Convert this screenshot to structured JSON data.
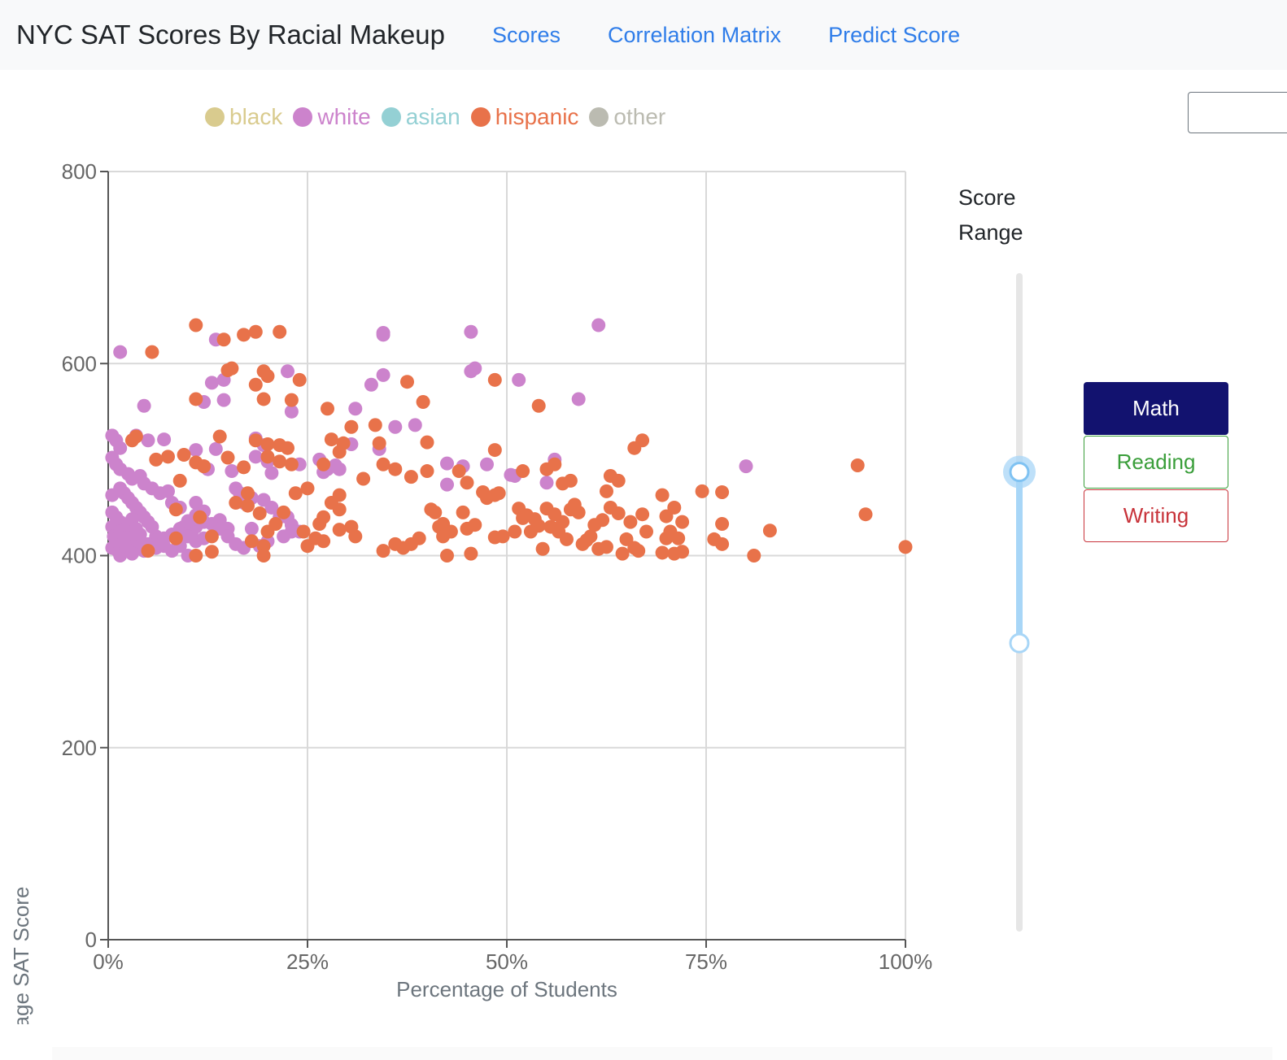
{
  "navbar": {
    "brand": "NYC SAT Scores By Racial Makeup",
    "links": [
      "Scores",
      "Correlation Matrix",
      "Predict Score"
    ]
  },
  "legend": [
    {
      "label": "black",
      "color": "#d9cb8e"
    },
    {
      "label": "white",
      "color": "#cc83cc"
    },
    {
      "label": "asian",
      "color": "#94d0d4"
    },
    {
      "label": "hispanic",
      "color": "#e8724a"
    },
    {
      "label": "other",
      "color": "#bbbbb1"
    }
  ],
  "controls": {
    "range_label": "Score Range",
    "slider_values": [
      560,
      350
    ],
    "slider_min": 0,
    "slider_max": 800,
    "buttons": [
      "Math",
      "Reading",
      "Writing"
    ],
    "active_button": "Math"
  },
  "chart_data": {
    "type": "scatter",
    "xlabel": "Percentage of Students",
    "ylabel": "Average SAT Score",
    "xlim": [
      0,
      100
    ],
    "ylim": [
      0,
      800
    ],
    "x_ticks": [
      "0%",
      "25%",
      "50%",
      "75%",
      "100%"
    ],
    "y_ticks": [
      "0",
      "200",
      "400",
      "600",
      "800"
    ],
    "grid": true,
    "series": [
      {
        "name": "white",
        "color": "#cc83cc",
        "points": [
          [
            1.5,
            612
          ],
          [
            13.5,
            625
          ],
          [
            34.5,
            632
          ],
          [
            34.5,
            630
          ],
          [
            45.5,
            633
          ],
          [
            61.5,
            640
          ],
          [
            46,
            595
          ],
          [
            45.5,
            592
          ],
          [
            51.5,
            583
          ],
          [
            34.5,
            588
          ],
          [
            33,
            578
          ],
          [
            22.5,
            592
          ],
          [
            14.5,
            583
          ],
          [
            13,
            580
          ],
          [
            12,
            560
          ],
          [
            14.5,
            562
          ],
          [
            4.5,
            556
          ],
          [
            23,
            550
          ],
          [
            31,
            553
          ],
          [
            59,
            563
          ],
          [
            0.5,
            525
          ],
          [
            1,
            520
          ],
          [
            1.5,
            512
          ],
          [
            3.5,
            525
          ],
          [
            5,
            520
          ],
          [
            7,
            521
          ],
          [
            13.5,
            511
          ],
          [
            11,
            510
          ],
          [
            18.5,
            522
          ],
          [
            19.5,
            515
          ],
          [
            20,
            498
          ],
          [
            18.5,
            503
          ],
          [
            24,
            495
          ],
          [
            26.5,
            500
          ],
          [
            27.5,
            490
          ],
          [
            29,
            490
          ],
          [
            30.5,
            516
          ],
          [
            34,
            511
          ],
          [
            36,
            534
          ],
          [
            38.5,
            536
          ],
          [
            42.5,
            496
          ],
          [
            44.5,
            493
          ],
          [
            47.5,
            495
          ],
          [
            50.5,
            484
          ],
          [
            51,
            483
          ],
          [
            56,
            500
          ],
          [
            80,
            493
          ],
          [
            42.5,
            474
          ],
          [
            55,
            476
          ],
          [
            0.5,
            502
          ],
          [
            1,
            495
          ],
          [
            1.5,
            490
          ],
          [
            2.5,
            485
          ],
          [
            3,
            480
          ],
          [
            4,
            483
          ],
          [
            4.5,
            475
          ],
          [
            5.5,
            470
          ],
          [
            6.5,
            465
          ],
          [
            7.5,
            467
          ],
          [
            8,
            455
          ],
          [
            9,
            450
          ],
          [
            11,
            455
          ],
          [
            12.5,
            490
          ],
          [
            15.5,
            488
          ],
          [
            16,
            470
          ],
          [
            16.5,
            465
          ],
          [
            18,
            460
          ],
          [
            19.5,
            458
          ],
          [
            20.5,
            450
          ],
          [
            21.5,
            440
          ],
          [
            22.5,
            440
          ],
          [
            23,
            432
          ],
          [
            24,
            425
          ],
          [
            18,
            428
          ],
          [
            17,
            455
          ],
          [
            15,
            428
          ],
          [
            13.5,
            432
          ],
          [
            14,
            437
          ],
          [
            12,
            435
          ],
          [
            11,
            430
          ],
          [
            10.5,
            425
          ],
          [
            9.5,
            430
          ],
          [
            10,
            420
          ],
          [
            11,
            415
          ],
          [
            12,
            418
          ],
          [
            9,
            410
          ],
          [
            8,
            405
          ],
          [
            10,
            400
          ],
          [
            7,
            410
          ],
          [
            6,
            420
          ],
          [
            5.5,
            430
          ],
          [
            5,
            435
          ],
          [
            4.5,
            440
          ],
          [
            4,
            445
          ],
          [
            3.5,
            450
          ],
          [
            3,
            455
          ],
          [
            2.5,
            460
          ],
          [
            2,
            465
          ],
          [
            1.5,
            470
          ],
          [
            0.5,
            463
          ],
          [
            0.5,
            445
          ],
          [
            1,
            440
          ],
          [
            1.5,
            435
          ],
          [
            2,
            430
          ],
          [
            2.5,
            425
          ],
          [
            3,
            420
          ],
          [
            3.5,
            415
          ],
          [
            4,
            410
          ],
          [
            4.5,
            405
          ],
          [
            0.5,
            430
          ],
          [
            0.7,
            420
          ],
          [
            1,
            410
          ],
          [
            1.2,
            405
          ],
          [
            1.5,
            400
          ],
          [
            2,
            412
          ],
          [
            2.5,
            405
          ],
          [
            3,
            402
          ],
          [
            0.5,
            408
          ],
          [
            1,
            415
          ],
          [
            1.5,
            425
          ],
          [
            2,
            418
          ],
          [
            2.5,
            432
          ],
          [
            3,
            438
          ],
          [
            3.5,
            428
          ],
          [
            4,
            422
          ],
          [
            5,
            412
          ],
          [
            6,
            408
          ],
          [
            7,
            418
          ],
          [
            8,
            422
          ],
          [
            9,
            428
          ],
          [
            10,
            436
          ],
          [
            11,
            442
          ],
          [
            12,
            446
          ],
          [
            13,
            433
          ],
          [
            14,
            428
          ],
          [
            15,
            420
          ],
          [
            16,
            412
          ],
          [
            17,
            408
          ],
          [
            19,
            410
          ],
          [
            20,
            415
          ],
          [
            22,
            420
          ],
          [
            23,
            425
          ],
          [
            20.5,
            486
          ],
          [
            27,
            487
          ],
          [
            28.5,
            494
          ]
        ]
      },
      {
        "name": "hispanic",
        "color": "#e8724a",
        "points": [
          [
            11,
            640
          ],
          [
            14.5,
            625
          ],
          [
            17,
            630
          ],
          [
            18.5,
            633
          ],
          [
            21.5,
            633
          ],
          [
            5.5,
            612
          ],
          [
            15.5,
            595
          ],
          [
            15,
            593
          ],
          [
            19.5,
            592
          ],
          [
            20,
            587
          ],
          [
            24,
            583
          ],
          [
            18.5,
            578
          ],
          [
            37.5,
            581
          ],
          [
            48.5,
            583
          ],
          [
            11,
            563
          ],
          [
            19.5,
            563
          ],
          [
            23,
            562
          ],
          [
            39.5,
            560
          ],
          [
            54,
            556
          ],
          [
            27.5,
            553
          ],
          [
            3.5,
            524
          ],
          [
            14,
            524
          ],
          [
            18.5,
            520
          ],
          [
            20,
            516
          ],
          [
            21.5,
            515
          ],
          [
            22.5,
            512
          ],
          [
            28,
            521
          ],
          [
            29.5,
            517
          ],
          [
            30.5,
            534
          ],
          [
            33.5,
            536
          ],
          [
            34,
            517
          ],
          [
            40,
            518
          ],
          [
            48.5,
            510
          ],
          [
            66,
            512
          ],
          [
            67,
            520
          ],
          [
            7.5,
            503
          ],
          [
            9.5,
            505
          ],
          [
            11,
            497
          ],
          [
            12,
            493
          ],
          [
            15,
            502
          ],
          [
            17,
            492
          ],
          [
            20,
            503
          ],
          [
            21.5,
            498
          ],
          [
            23,
            495
          ],
          [
            27,
            495
          ],
          [
            29,
            508
          ],
          [
            34.5,
            495
          ],
          [
            36,
            490
          ],
          [
            38,
            482
          ],
          [
            40,
            488
          ],
          [
            45,
            476
          ],
          [
            47,
            466
          ],
          [
            48.5,
            463
          ],
          [
            52,
            488
          ],
          [
            55,
            490
          ],
          [
            56,
            495
          ],
          [
            57,
            475
          ],
          [
            58,
            478
          ],
          [
            63,
            483
          ],
          [
            64,
            478
          ],
          [
            62.5,
            467
          ],
          [
            74.5,
            467
          ],
          [
            77,
            466
          ],
          [
            94,
            494
          ],
          [
            95,
            443
          ],
          [
            100,
            409
          ],
          [
            5,
            405
          ],
          [
            8.5,
            418
          ],
          [
            8.5,
            448
          ],
          [
            9,
            478
          ],
          [
            12,
            493
          ],
          [
            11.5,
            440
          ],
          [
            13,
            420
          ],
          [
            13,
            404
          ],
          [
            11,
            400
          ],
          [
            16,
            455
          ],
          [
            17.5,
            465
          ],
          [
            17.5,
            452
          ],
          [
            19,
            444
          ],
          [
            20,
            425
          ],
          [
            18,
            415
          ],
          [
            19.5,
            410
          ],
          [
            19.5,
            400
          ],
          [
            21,
            433
          ],
          [
            22,
            445
          ],
          [
            23.5,
            465
          ],
          [
            24.5,
            425
          ],
          [
            25,
            410
          ],
          [
            26,
            418
          ],
          [
            27,
            415
          ],
          [
            28,
            455
          ],
          [
            29,
            448
          ],
          [
            29,
            463
          ],
          [
            26.5,
            433
          ],
          [
            29,
            427
          ],
          [
            34.5,
            405
          ],
          [
            36,
            412
          ],
          [
            37,
            408
          ],
          [
            38,
            412
          ],
          [
            39,
            418
          ],
          [
            40.5,
            448
          ],
          [
            41,
            445
          ],
          [
            41.5,
            430
          ],
          [
            42,
            420
          ],
          [
            42,
            433
          ],
          [
            42.5,
            400
          ],
          [
            43,
            425
          ],
          [
            44,
            488
          ],
          [
            44.5,
            445
          ],
          [
            45,
            428
          ],
          [
            45.5,
            402
          ],
          [
            46,
            432
          ],
          [
            47.5,
            460
          ],
          [
            48.5,
            419
          ],
          [
            49,
            465
          ],
          [
            49.5,
            420
          ],
          [
            51,
            425
          ],
          [
            51.5,
            449
          ],
          [
            52,
            439
          ],
          [
            52.5,
            442
          ],
          [
            53,
            425
          ],
          [
            53.5,
            438
          ],
          [
            54,
            431
          ],
          [
            54.5,
            407
          ],
          [
            55,
            449
          ],
          [
            55.5,
            430
          ],
          [
            56,
            443
          ],
          [
            56.5,
            425
          ],
          [
            57,
            435
          ],
          [
            57.5,
            417
          ],
          [
            58,
            448
          ],
          [
            58.5,
            453
          ],
          [
            59,
            445
          ],
          [
            59.5,
            412
          ],
          [
            60,
            416
          ],
          [
            60.5,
            420
          ],
          [
            61,
            432
          ],
          [
            61.5,
            407
          ],
          [
            62,
            437
          ],
          [
            62.5,
            409
          ],
          [
            63,
            450
          ],
          [
            64,
            444
          ],
          [
            64.5,
            402
          ],
          [
            65,
            417
          ],
          [
            65.5,
            435
          ],
          [
            66,
            408
          ],
          [
            66.5,
            405
          ],
          [
            67,
            443
          ],
          [
            67.5,
            425
          ],
          [
            69.5,
            463
          ],
          [
            69.5,
            403
          ],
          [
            70,
            441
          ],
          [
            70,
            418
          ],
          [
            70.5,
            425
          ],
          [
            71,
            402
          ],
          [
            71,
            450
          ],
          [
            71.5,
            418
          ],
          [
            72,
            435
          ],
          [
            72,
            404
          ],
          [
            76,
            417
          ],
          [
            77,
            412
          ],
          [
            77,
            433
          ],
          [
            81,
            400
          ],
          [
            83,
            426
          ],
          [
            31,
            420
          ],
          [
            32,
            480
          ],
          [
            30.5,
            430
          ],
          [
            27,
            440
          ],
          [
            25,
            470
          ],
          [
            6,
            500
          ],
          [
            3,
            520
          ]
        ]
      }
    ]
  }
}
